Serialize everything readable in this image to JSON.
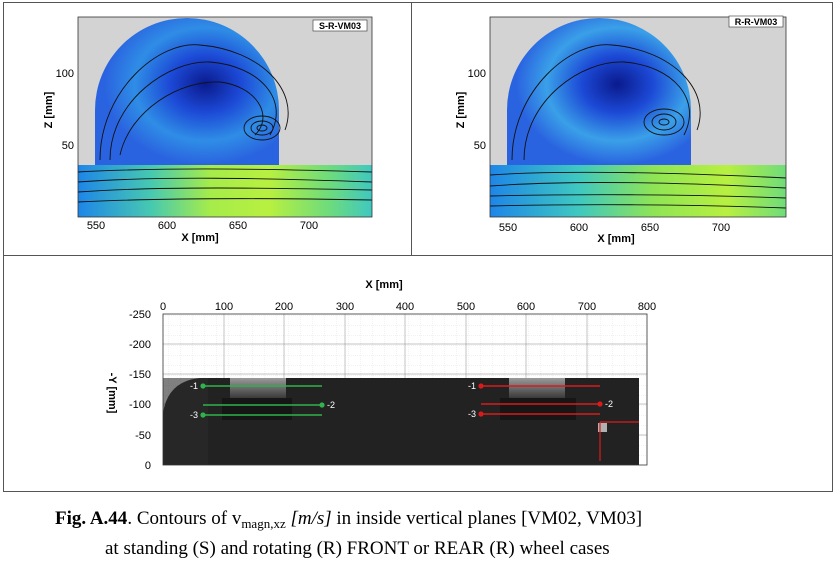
{
  "panels": [
    {
      "label": "S-R-VM03",
      "x_ticks": [
        "550",
        "600",
        "650",
        "700"
      ],
      "z_ticks": [
        "100",
        "50"
      ],
      "x_axis_label": "X [mm]",
      "z_axis_label": "Z [mm]"
    },
    {
      "label": "R-R-VM03",
      "x_ticks": [
        "550",
        "600",
        "650",
        "700"
      ],
      "z_ticks": [
        "100",
        "50"
      ],
      "x_axis_label": "X [mm]",
      "z_axis_label": "Z [mm]"
    }
  ],
  "bottom_plot": {
    "x_axis_label": "X [mm]",
    "y_axis_label": "-Y [mm]",
    "x_ticks": [
      "0",
      "100",
      "200",
      "300",
      "400",
      "500",
      "600",
      "700",
      "800"
    ],
    "y_ticks": [
      "-250",
      "-200",
      "-150",
      "-100",
      "-50",
      "0"
    ],
    "front_lines": [
      {
        "label": "-1",
        "color": "#2fb34a"
      },
      {
        "label": "-2",
        "color": "#2fb34a"
      },
      {
        "label": "-3",
        "color": "#2fb34a"
      }
    ],
    "rear_lines": [
      {
        "label": "-1",
        "color": "#d81c1c"
      },
      {
        "label": "-2",
        "color": "#d81c1c"
      },
      {
        "label": "-3",
        "color": "#d81c1c"
      }
    ]
  },
  "caption": {
    "fig_label": "Fig. A.44",
    "text_before": ". Contours of v",
    "subscript": "magn,xz",
    "unit": "[m/s]",
    "text_after": " in inside vertical planes [VM02, VM03]",
    "line2": "at standing (S) and rotating (R) FRONT or REAR (R) wheel cases"
  }
}
